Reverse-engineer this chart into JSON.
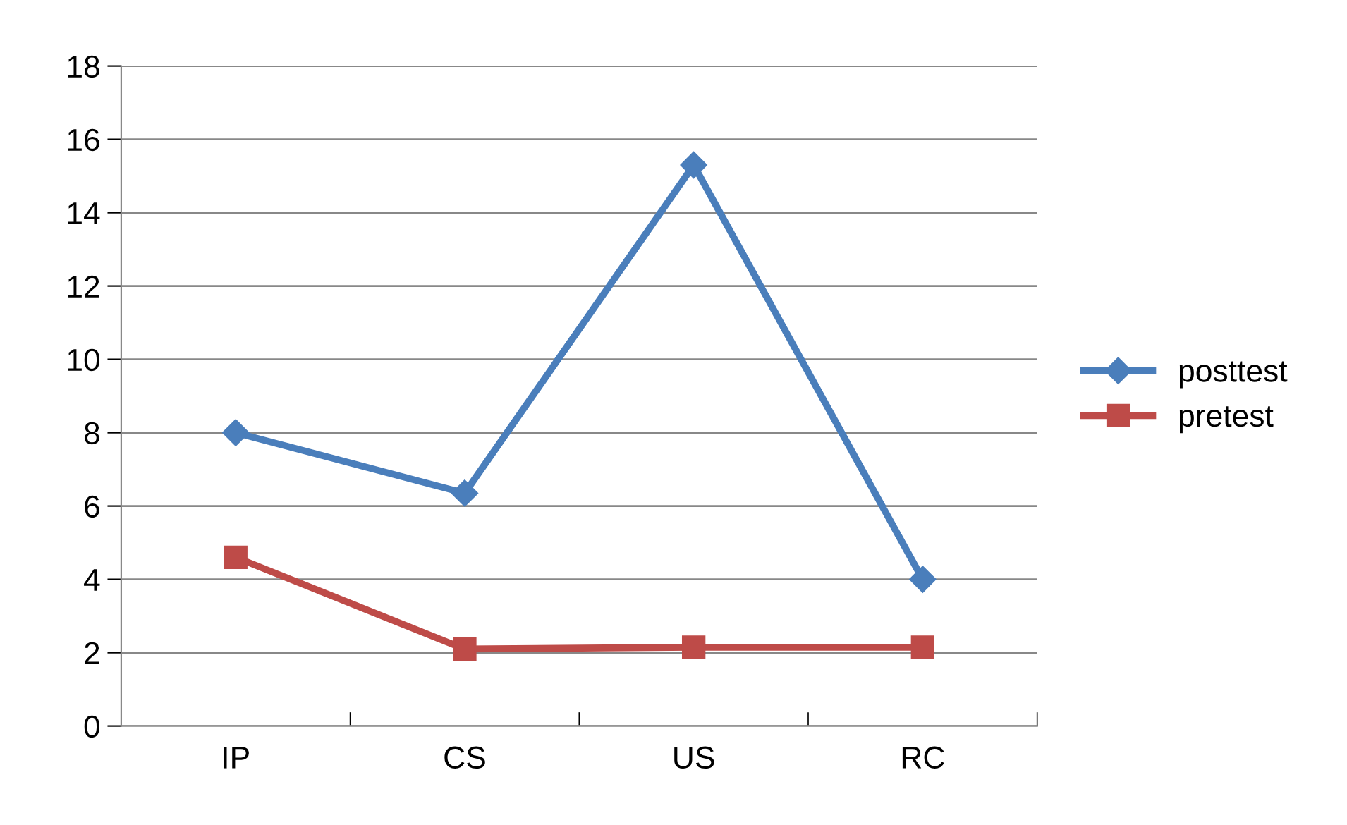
{
  "chart_data": {
    "type": "line",
    "categories": [
      "IP",
      "CS",
      "US",
      "RC"
    ],
    "series": [
      {
        "name": "posttest",
        "color": "#4a7ebb",
        "values": [
          8,
          6.35,
          15.3,
          4
        ],
        "marker": "diamond"
      },
      {
        "name": "pretest",
        "color": "#be4b48",
        "values": [
          4.6,
          2.1,
          2.15,
          2.15
        ],
        "marker": "square"
      }
    ],
    "ylim": [
      0,
      18
    ],
    "yticks": [
      0,
      2,
      4,
      6,
      8,
      10,
      12,
      14,
      16,
      18
    ],
    "grid": "y",
    "legend": "right",
    "line_style": "solid"
  }
}
